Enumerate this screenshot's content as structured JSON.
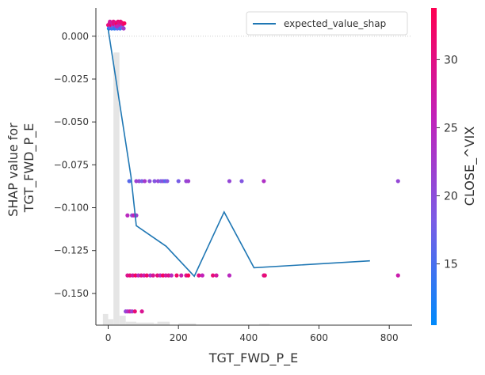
{
  "chart_data": {
    "type": "scatter",
    "xlabel": "TGT_FWD_P_E",
    "ylabel_lines": [
      "SHAP value for",
      "TGT_FWD_P_E"
    ],
    "xlim": [
      -35,
      865
    ],
    "ylim": [
      -0.1685,
      0.0165
    ],
    "x_ticks": [
      0,
      200,
      400,
      600,
      800
    ],
    "x_tick_labels": [
      "0",
      "200",
      "400",
      "600",
      "800"
    ],
    "y_ticks": [
      0.0,
      -0.025,
      -0.05,
      -0.075,
      -0.1,
      -0.125,
      -0.15
    ],
    "y_tick_labels": [
      "0.000",
      "−0.025",
      "−0.050",
      "−0.075",
      "−0.100",
      "−0.125",
      "−0.150"
    ],
    "baseline_y": 0.0,
    "legend": {
      "position": "top-right",
      "entries": [
        {
          "label": "expected_value_shap",
          "color": "#1f77b4"
        }
      ]
    },
    "line": {
      "name": "expected_value_shap",
      "color": "#1f77b4",
      "x": [
        0,
        65,
        80,
        165,
        245,
        330,
        415,
        745
      ],
      "y": [
        0.004,
        -0.082,
        -0.1105,
        -0.1225,
        -0.14,
        -0.1025,
        -0.135,
        -0.131
      ]
    },
    "histogram": {
      "bins": [
        {
          "x": [
            -15,
            0
          ],
          "height": -0.162
        },
        {
          "x": [
            0,
            15
          ],
          "height": -0.165
        },
        {
          "x": [
            15,
            32
          ],
          "height": -0.0095
        },
        {
          "x": [
            32,
            50
          ],
          "height": -0.163
        },
        {
          "x": [
            50,
            80
          ],
          "height": -0.1665
        },
        {
          "x": [
            80,
            130
          ],
          "height": -0.167
        },
        {
          "x": [
            130,
            175
          ],
          "height": -0.1675
        },
        {
          "x": [
            140,
            175
          ],
          "height": -0.1665
        },
        {
          "x": [
            200,
            250
          ],
          "height": -0.1675
        },
        {
          "x": [
            430,
            460
          ],
          "height": -0.1678
        }
      ],
      "color": "#e5e5e5"
    },
    "colorbar": {
      "label": "CLOSE_^VIX",
      "min": 10.5,
      "max": 33.8,
      "ticks": [
        15,
        20,
        25,
        30
      ],
      "tick_labels": [
        "15",
        "20",
        "25",
        "30"
      ],
      "cmap": [
        "#008afb",
        "#7b5ce5",
        "#c221b9",
        "#ff0051"
      ]
    },
    "points": [
      {
        "x": 0,
        "y": 0.0065,
        "c": 31
      },
      {
        "x": 2,
        "y": 0.0045,
        "c": 12
      },
      {
        "x": 4,
        "y": 0.0075,
        "c": 29
      },
      {
        "x": 6,
        "y": 0.005,
        "c": 20
      },
      {
        "x": 8,
        "y": 0.0065,
        "c": 32
      },
      {
        "x": 10,
        "y": 0.0045,
        "c": 14
      },
      {
        "x": 12,
        "y": 0.0075,
        "c": 27
      },
      {
        "x": 14,
        "y": 0.0055,
        "c": 19
      },
      {
        "x": 16,
        "y": 0.007,
        "c": 30
      },
      {
        "x": 18,
        "y": 0.0045,
        "c": 13
      },
      {
        "x": 20,
        "y": 0.008,
        "c": 28
      },
      {
        "x": 22,
        "y": 0.006,
        "c": 22
      },
      {
        "x": 24,
        "y": 0.007,
        "c": 33
      },
      {
        "x": 26,
        "y": 0.0045,
        "c": 16
      },
      {
        "x": 28,
        "y": 0.0085,
        "c": 31
      },
      {
        "x": 30,
        "y": 0.0055,
        "c": 21
      },
      {
        "x": 32,
        "y": 0.0075,
        "c": 29
      },
      {
        "x": 34,
        "y": 0.0045,
        "c": 15
      },
      {
        "x": 36,
        "y": 0.0065,
        "c": 27
      },
      {
        "x": 38,
        "y": 0.008,
        "c": 32
      },
      {
        "x": 40,
        "y": 0.0055,
        "c": 18
      },
      {
        "x": 42,
        "y": 0.007,
        "c": 30
      },
      {
        "x": 44,
        "y": 0.0045,
        "c": 23
      },
      {
        "x": 46,
        "y": 0.0075,
        "c": 33
      },
      {
        "x": 5,
        "y": 0.0085,
        "c": 28
      },
      {
        "x": 15,
        "y": 0.0085,
        "c": 30
      },
      {
        "x": 25,
        "y": 0.0058,
        "c": 25
      },
      {
        "x": 35,
        "y": 0.0085,
        "c": 31
      },
      {
        "x": 60,
        "y": -0.0845,
        "c": 16
      },
      {
        "x": 80,
        "y": -0.0845,
        "c": 22
      },
      {
        "x": 88,
        "y": -0.0845,
        "c": 21
      },
      {
        "x": 96,
        "y": -0.0845,
        "c": 18
      },
      {
        "x": 104,
        "y": -0.0845,
        "c": 23
      },
      {
        "x": 118,
        "y": -0.0845,
        "c": 20
      },
      {
        "x": 132,
        "y": -0.0845,
        "c": 19
      },
      {
        "x": 142,
        "y": -0.0845,
        "c": 21
      },
      {
        "x": 150,
        "y": -0.0845,
        "c": 18
      },
      {
        "x": 156,
        "y": -0.0845,
        "c": 20
      },
      {
        "x": 162,
        "y": -0.0845,
        "c": 16
      },
      {
        "x": 168,
        "y": -0.0845,
        "c": 19
      },
      {
        "x": 200,
        "y": -0.0845,
        "c": 18
      },
      {
        "x": 222,
        "y": -0.0845,
        "c": 21
      },
      {
        "x": 228,
        "y": -0.0845,
        "c": 22
      },
      {
        "x": 345,
        "y": -0.0845,
        "c": 21
      },
      {
        "x": 380,
        "y": -0.0845,
        "c": 19
      },
      {
        "x": 443,
        "y": -0.0845,
        "c": 24
      },
      {
        "x": 825,
        "y": -0.0845,
        "c": 21
      },
      {
        "x": 55,
        "y": -0.1045,
        "c": 25
      },
      {
        "x": 68,
        "y": -0.1045,
        "c": 20
      },
      {
        "x": 73,
        "y": -0.1045,
        "c": 26
      },
      {
        "x": 80,
        "y": -0.1045,
        "c": 22
      },
      {
        "x": 55,
        "y": -0.1395,
        "c": 29
      },
      {
        "x": 62,
        "y": -0.1395,
        "c": 31
      },
      {
        "x": 70,
        "y": -0.1395,
        "c": 28
      },
      {
        "x": 78,
        "y": -0.1395,
        "c": 33
      },
      {
        "x": 86,
        "y": -0.1395,
        "c": 25
      },
      {
        "x": 94,
        "y": -0.1395,
        "c": 30
      },
      {
        "x": 102,
        "y": -0.1395,
        "c": 27
      },
      {
        "x": 110,
        "y": -0.1395,
        "c": 32
      },
      {
        "x": 120,
        "y": -0.1395,
        "c": 24
      },
      {
        "x": 128,
        "y": -0.1395,
        "c": 29
      },
      {
        "x": 140,
        "y": -0.1395,
        "c": 31
      },
      {
        "x": 148,
        "y": -0.1395,
        "c": 26
      },
      {
        "x": 156,
        "y": -0.1395,
        "c": 33
      },
      {
        "x": 164,
        "y": -0.1395,
        "c": 28
      },
      {
        "x": 172,
        "y": -0.1395,
        "c": 30
      },
      {
        "x": 180,
        "y": -0.1395,
        "c": 25
      },
      {
        "x": 195,
        "y": -0.1395,
        "c": 32
      },
      {
        "x": 208,
        "y": -0.1395,
        "c": 27
      },
      {
        "x": 222,
        "y": -0.1395,
        "c": 29
      },
      {
        "x": 228,
        "y": -0.1395,
        "c": 33
      },
      {
        "x": 258,
        "y": -0.1395,
        "c": 30
      },
      {
        "x": 268,
        "y": -0.1395,
        "c": 26
      },
      {
        "x": 298,
        "y": -0.1395,
        "c": 31
      },
      {
        "x": 308,
        "y": -0.1395,
        "c": 28
      },
      {
        "x": 345,
        "y": -0.1395,
        "c": 25
      },
      {
        "x": 443,
        "y": -0.1395,
        "c": 29
      },
      {
        "x": 446,
        "y": -0.1395,
        "c": 31
      },
      {
        "x": 825,
        "y": -0.1395,
        "c": 27
      },
      {
        "x": 50,
        "y": -0.1605,
        "c": 21
      },
      {
        "x": 56,
        "y": -0.1605,
        "c": 24
      },
      {
        "x": 62,
        "y": -0.1605,
        "c": 28
      },
      {
        "x": 68,
        "y": -0.1605,
        "c": 22
      },
      {
        "x": 76,
        "y": -0.1605,
        "c": 31
      },
      {
        "x": 96,
        "y": -0.1605,
        "c": 29
      }
    ]
  }
}
